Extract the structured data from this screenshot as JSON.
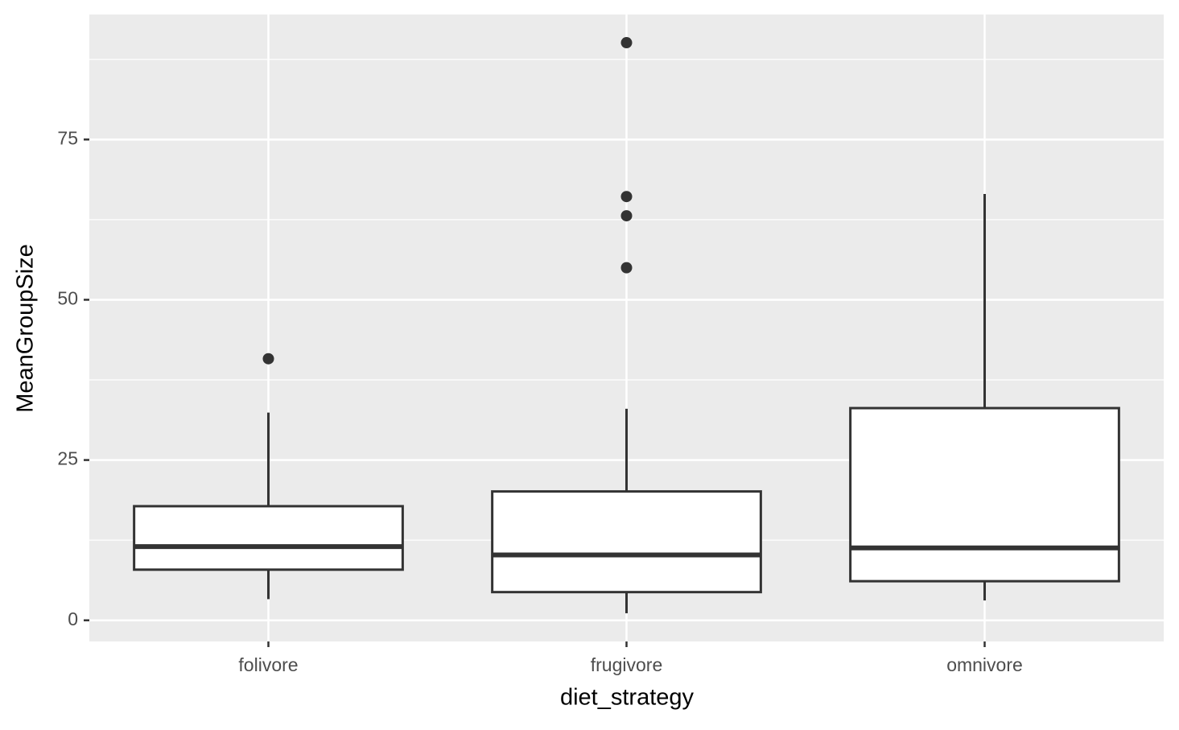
{
  "chart_data": {
    "type": "box",
    "x_label": "diet_strategy",
    "y_label": "MeanGroupSize",
    "categories": [
      "folivore",
      "frugivore",
      "omnivore"
    ],
    "boxes": [
      {
        "min": 3.3,
        "q1": 7.9,
        "median": 11.5,
        "q3": 17.8,
        "max": 32.4,
        "outliers": [
          40.8
        ]
      },
      {
        "min": 1.1,
        "q1": 4.4,
        "median": 10.2,
        "q3": 20.1,
        "max": 33.0,
        "outliers": [
          55.0,
          63.1,
          66.1,
          90.1
        ]
      },
      {
        "min": 3.1,
        "q1": 6.1,
        "median": 11.3,
        "q3": 33.1,
        "max": 66.5,
        "outliers": []
      }
    ],
    "color": "#333333",
    "box_fill": "#ffffff",
    "panel_color": "#ebebeb",
    "ylim": [
      -3.3,
      94.5
    ],
    "yticks": [
      0,
      25,
      50,
      75
    ],
    "yminor": [
      12.5,
      37.5,
      62.5,
      87.5
    ],
    "grid": true
  }
}
